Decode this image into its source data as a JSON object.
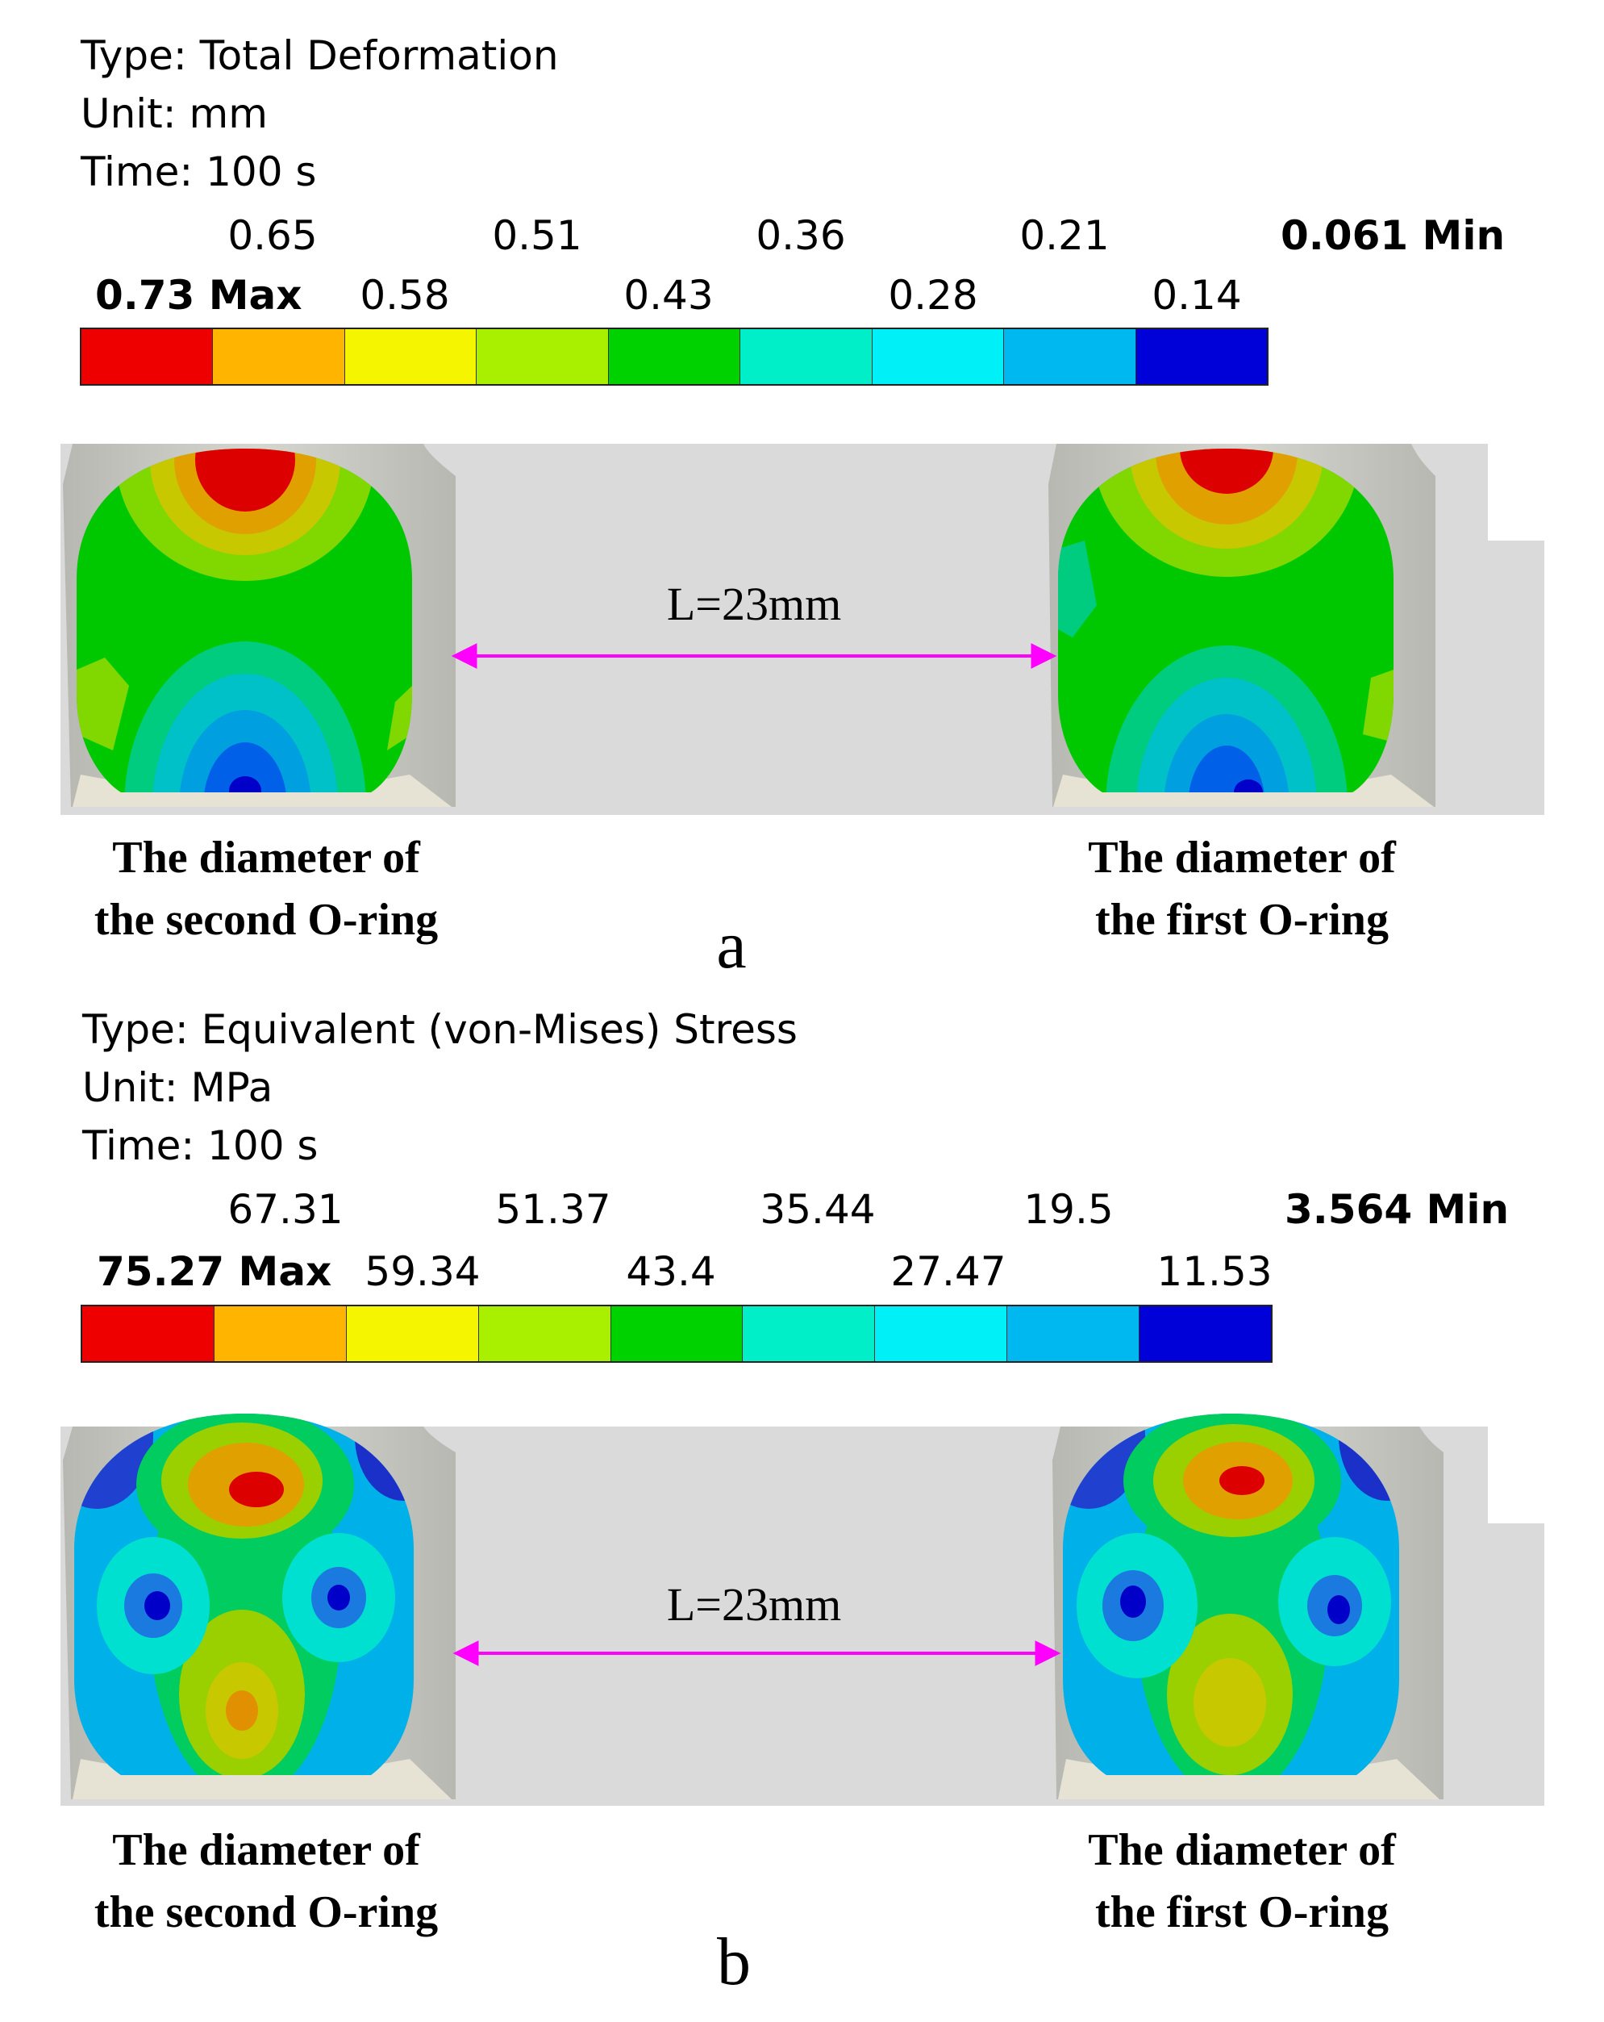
{
  "panel_a": {
    "type_line": "Type: Total Deformation",
    "unit_line": "Unit: mm",
    "time_line": "Time: 100 s",
    "legend": {
      "max_label": "0.73 Max",
      "min_label": "0.061 Min",
      "upper_ticks": [
        "0.65",
        "0.51",
        "0.36",
        "0.21"
      ],
      "lower_ticks": [
        "0.58",
        "0.43",
        "0.28",
        "0.14"
      ]
    },
    "distance_label": "L=23mm",
    "left_caption_1": "The diameter of",
    "left_caption_2": "the second O-ring",
    "right_caption_1": "The diameter of",
    "right_caption_2": "the first O-ring",
    "letter": "a"
  },
  "panel_b": {
    "type_line": "Type: Equivalent (von-Mises) Stress",
    "unit_line": "Unit: MPa",
    "time_line": "Time: 100 s",
    "legend": {
      "max_label": "75.27 Max",
      "min_label": "3.564 Min",
      "upper_ticks": [
        "67.31",
        "51.37",
        "35.44",
        "19.5"
      ],
      "lower_ticks": [
        "59.34",
        "43.4",
        "27.47",
        "11.53"
      ]
    },
    "distance_label": "L=23mm",
    "left_caption_1": "The diameter of",
    "left_caption_2": "the second O-ring",
    "right_caption_1": "The diameter of",
    "right_caption_2": "the first O-ring",
    "letter": "b"
  },
  "colors": {
    "legend": [
      "#ee0000",
      "#ffb400",
      "#f5f500",
      "#a8f000",
      "#00d200",
      "#00eec8",
      "#00f0f8",
      "#00b8f0",
      "#0000d8"
    ],
    "arrow": "#ff00ff",
    "housing": "#dadada",
    "groove": "#c8c8c2"
  }
}
